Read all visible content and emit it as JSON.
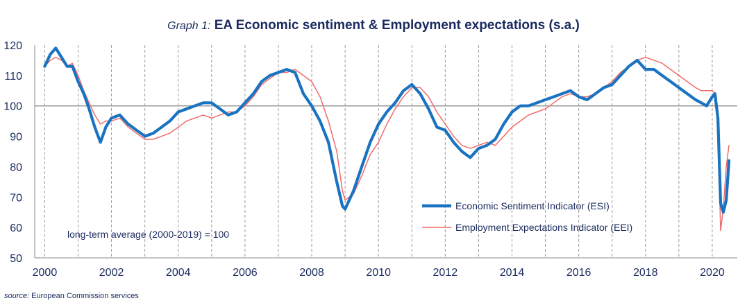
{
  "title": {
    "prefix": "Graph 1:",
    "main": "EA Economic sentiment & Employment expectations (s.a.)"
  },
  "source": {
    "label": "source:",
    "text": "European Commission services"
  },
  "annotation": "long-term average (2000-2019) = 100",
  "colors": {
    "esi": "#1a73c1",
    "eei": "#f06b6b",
    "text": "#1a2a5e",
    "grid": "#9a9a9a",
    "ref": "#9a9a9a"
  },
  "chart_data": {
    "type": "line",
    "title": "EA Economic sentiment & Employment expectations (s.a.)",
    "xlabel": "",
    "ylabel": "",
    "xlim": [
      1999.7,
      2020.75
    ],
    "ylim": [
      50,
      120
    ],
    "yticks": [
      50,
      60,
      70,
      80,
      90,
      100,
      110,
      120
    ],
    "xticks": [
      2000,
      2002,
      2004,
      2006,
      2008,
      2010,
      2012,
      2014,
      2016,
      2018,
      2020
    ],
    "xtick_labels": [
      "2000",
      "2002",
      "2004",
      "2006",
      "2008",
      "2010",
      "2012",
      "2014",
      "2016",
      "2018",
      "2020"
    ],
    "reference_line": 100,
    "grid": "vertical dashed at each year",
    "legend_position": "right",
    "series": [
      {
        "name": "Economic Sentiment Indicator (ESI)",
        "x": [
          2000.0,
          2000.17,
          2000.33,
          2000.5,
          2000.67,
          2000.83,
          2001.0,
          2001.17,
          2001.33,
          2001.5,
          2001.67,
          2001.83,
          2002.0,
          2002.25,
          2002.5,
          2002.75,
          2003.0,
          2003.25,
          2003.5,
          2003.75,
          2004.0,
          2004.25,
          2004.5,
          2004.75,
          2005.0,
          2005.25,
          2005.5,
          2005.75,
          2006.0,
          2006.25,
          2006.5,
          2006.75,
          2007.0,
          2007.25,
          2007.5,
          2007.75,
          2008.0,
          2008.25,
          2008.5,
          2008.75,
          2008.92,
          2009.0,
          2009.25,
          2009.5,
          2009.75,
          2010.0,
          2010.25,
          2010.5,
          2010.75,
          2011.0,
          2011.25,
          2011.5,
          2011.75,
          2012.0,
          2012.25,
          2012.5,
          2012.75,
          2013.0,
          2013.25,
          2013.5,
          2013.75,
          2014.0,
          2014.25,
          2014.5,
          2014.75,
          2015.0,
          2015.25,
          2015.5,
          2015.75,
          2016.0,
          2016.25,
          2016.5,
          2016.75,
          2017.0,
          2017.25,
          2017.5,
          2017.75,
          2018.0,
          2018.25,
          2018.5,
          2018.75,
          2019.0,
          2019.25,
          2019.5,
          2019.67,
          2019.83,
          2020.0,
          2020.08,
          2020.17,
          2020.25,
          2020.33,
          2020.42,
          2020.5
        ],
        "values": [
          113,
          117,
          119,
          116,
          113,
          113,
          108,
          104,
          99,
          93,
          88,
          93,
          96,
          97,
          94,
          92,
          90,
          91,
          93,
          95,
          98,
          99,
          100,
          101,
          101,
          99,
          97,
          98,
          101,
          104,
          108,
          110,
          111,
          112,
          111,
          104,
          100,
          95,
          88,
          75,
          67,
          66,
          72,
          80,
          88,
          94,
          98,
          101,
          105,
          107,
          104,
          99,
          93,
          92,
          88,
          85,
          83,
          86,
          87,
          89,
          94,
          98,
          100,
          100,
          101,
          102,
          103,
          104,
          105,
          103,
          102,
          104,
          106,
          107,
          110,
          113,
          115,
          112,
          112,
          110,
          108,
          106,
          104,
          102,
          101,
          100,
          103,
          104,
          96,
          68,
          65,
          69,
          82
        ]
      },
      {
        "name": "Employment Expectations Indicator (EEI)",
        "x": [
          2000.0,
          2000.17,
          2000.33,
          2000.5,
          2000.67,
          2000.83,
          2001.0,
          2001.17,
          2001.33,
          2001.5,
          2001.67,
          2001.83,
          2002.0,
          2002.25,
          2002.5,
          2002.75,
          2003.0,
          2003.25,
          2003.5,
          2003.75,
          2004.0,
          2004.25,
          2004.5,
          2004.75,
          2005.0,
          2005.25,
          2005.5,
          2005.75,
          2006.0,
          2006.25,
          2006.5,
          2006.75,
          2007.0,
          2007.25,
          2007.5,
          2007.75,
          2008.0,
          2008.25,
          2008.5,
          2008.75,
          2008.92,
          2009.0,
          2009.25,
          2009.5,
          2009.75,
          2010.0,
          2010.25,
          2010.5,
          2010.75,
          2011.0,
          2011.25,
          2011.5,
          2011.75,
          2012.0,
          2012.25,
          2012.5,
          2012.75,
          2013.0,
          2013.25,
          2013.5,
          2013.75,
          2014.0,
          2014.25,
          2014.5,
          2014.75,
          2015.0,
          2015.25,
          2015.5,
          2015.75,
          2016.0,
          2016.25,
          2016.5,
          2016.75,
          2017.0,
          2017.25,
          2017.5,
          2017.75,
          2018.0,
          2018.25,
          2018.5,
          2018.75,
          2019.0,
          2019.25,
          2019.5,
          2019.67,
          2019.83,
          2020.0,
          2020.08,
          2020.17,
          2020.25,
          2020.33,
          2020.42,
          2020.5
        ],
        "values": [
          113,
          115,
          116,
          115,
          113,
          114,
          110,
          105,
          101,
          97,
          94,
          95,
          95,
          96,
          93,
          91,
          89,
          89,
          90,
          91,
          93,
          95,
          96,
          97,
          96,
          97,
          98,
          98,
          100,
          103,
          107,
          109,
          111,
          111,
          112,
          110,
          108,
          103,
          95,
          85,
          72,
          69,
          71,
          77,
          84,
          88,
          94,
          99,
          103,
          106,
          106,
          103,
          98,
          94,
          90,
          87,
          86,
          87,
          88,
          87,
          90,
          93,
          95,
          97,
          98,
          99,
          101,
          103,
          104,
          103,
          103,
          104,
          106,
          108,
          111,
          113,
          115,
          116,
          115,
          114,
          112,
          110,
          108,
          106,
          105,
          105,
          105,
          104,
          92,
          59,
          66,
          80,
          87
        ]
      }
    ]
  }
}
